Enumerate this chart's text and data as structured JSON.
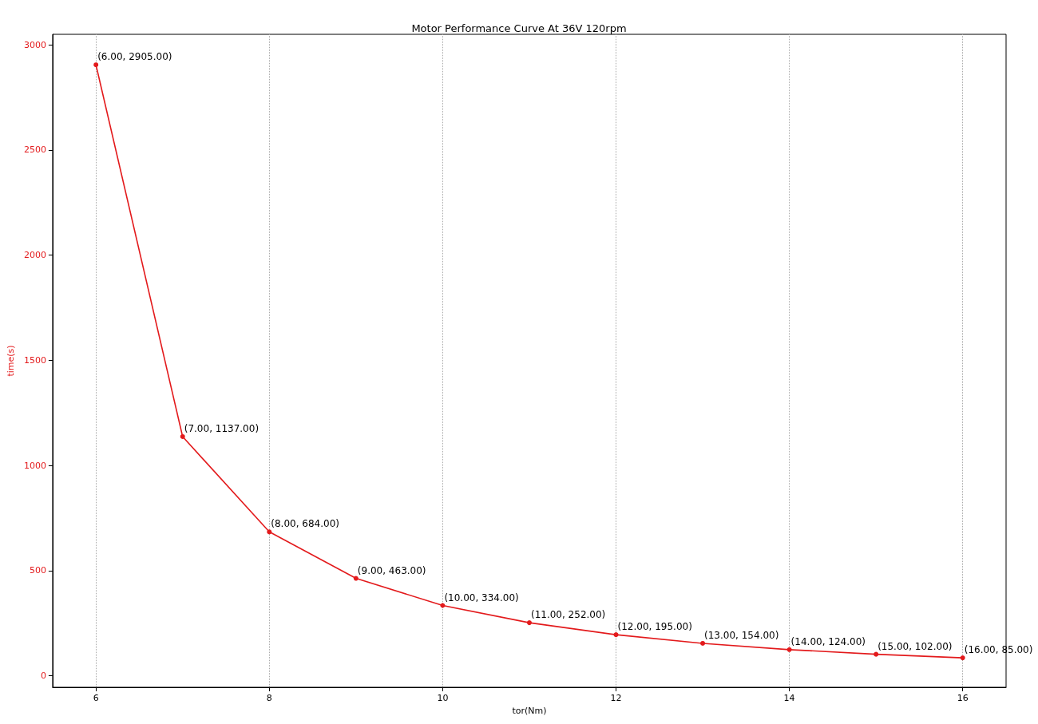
{
  "chart_data": {
    "type": "line",
    "title": "Motor Performance Curve At 36V 120rpm",
    "xlabel": "tor(Nm)",
    "ylabel": "time(s)",
    "x": [
      6,
      7,
      8,
      9,
      10,
      11,
      12,
      13,
      14,
      15,
      16
    ],
    "series": [
      {
        "color": "#e31a1c",
        "values": [
          2905,
          1137,
          684,
          463,
          334,
          252,
          195,
          154,
          124,
          102,
          85
        ],
        "value_labels": [
          "(6.00, 2905.00)",
          "(7.00, 1137.00)",
          "(8.00, 684.00)",
          "(9.00, 463.00)",
          "(10.00, 334.00)",
          "(11.00, 252.00)",
          "(12.00, 195.00)",
          "(13.00, 154.00)",
          "(14.00, 124.00)",
          "(15.00, 102.00)",
          "(16.00, 85.00)"
        ]
      }
    ],
    "xlim": [
      5.5,
      16.5
    ],
    "xticks": [
      6,
      8,
      10,
      12,
      14,
      16
    ],
    "ylim": [
      -55,
      3050
    ],
    "yticks": [
      0,
      500,
      1000,
      1500,
      2000,
      2500,
      3000
    ],
    "grid": "x",
    "marker": "circle",
    "line_style": "solid"
  }
}
